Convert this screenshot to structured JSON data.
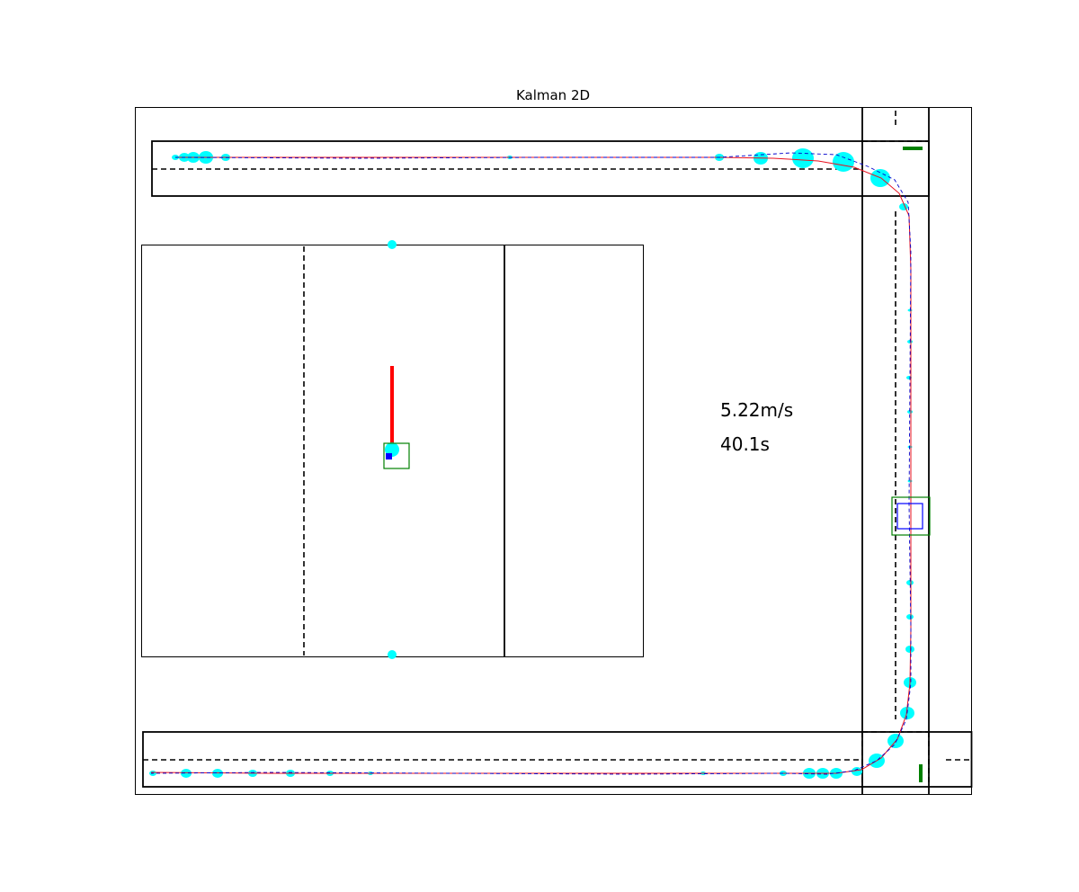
{
  "chart_data": {
    "type": "scatter",
    "title": "Kalman 2D",
    "xlabel": "",
    "ylabel": "",
    "grid": false,
    "annotations": {
      "speed": "5.22m/s",
      "time": "40.1s"
    },
    "colors": {
      "path_line": "#e8101e",
      "estimate_line": "#0000cc",
      "uncertainty_markers": "#00ffff",
      "box_outer": "#008000",
      "box_inner": "#0000ff",
      "heading_line": "#ff0000",
      "axes": "#000000"
    },
    "series": [
      {
        "role": "measured-path",
        "style": "solid",
        "points": [
          [
            195,
            175
          ],
          [
            400,
            175
          ],
          [
            600,
            175
          ],
          [
            800,
            175
          ],
          [
            860,
            176
          ],
          [
            910,
            179
          ],
          [
            950,
            186
          ],
          [
            980,
            198
          ],
          [
            1000,
            215
          ],
          [
            1011,
            240
          ],
          [
            1013,
            300
          ],
          [
            1013,
            420
          ],
          [
            1013,
            560
          ],
          [
            1013,
            700
          ],
          [
            1012,
            760
          ],
          [
            1008,
            795
          ],
          [
            998,
            822
          ],
          [
            980,
            843
          ],
          [
            958,
            856
          ],
          [
            930,
            860
          ],
          [
            870,
            860
          ],
          [
            700,
            860
          ],
          [
            500,
            860
          ],
          [
            300,
            860
          ],
          [
            168,
            859
          ]
        ]
      },
      {
        "role": "estimated-path",
        "style": "dashed",
        "points": [
          [
            195,
            175
          ],
          [
            400,
            176
          ],
          [
            600,
            175
          ],
          [
            800,
            175
          ],
          [
            880,
            170
          ],
          [
            930,
            172
          ],
          [
            965,
            185
          ],
          [
            995,
            200
          ],
          [
            1010,
            225
          ],
          [
            1013,
            280
          ],
          [
            1012,
            420
          ],
          [
            1011,
            560
          ],
          [
            1013,
            700
          ],
          [
            1013,
            760
          ],
          [
            1008,
            800
          ],
          [
            995,
            828
          ],
          [
            975,
            846
          ],
          [
            950,
            857
          ],
          [
            920,
            861
          ],
          [
            870,
            860
          ],
          [
            700,
            861
          ],
          [
            500,
            860
          ],
          [
            300,
            859
          ],
          [
            168,
            860
          ]
        ]
      },
      {
        "role": "uncertainty",
        "points": [
          [
            195,
            175,
            3
          ],
          [
            205,
            175,
            5
          ],
          [
            215,
            175,
            6
          ],
          [
            229,
            175,
            7
          ],
          [
            251,
            175,
            4
          ],
          [
            567,
            175,
            2
          ],
          [
            800,
            175,
            4
          ],
          [
            846,
            176,
            7
          ],
          [
            893,
            176,
            11
          ],
          [
            938,
            180,
            11
          ],
          [
            979,
            198,
            10
          ],
          [
            1005,
            230,
            4
          ],
          [
            1012,
            345,
            1.5
          ],
          [
            1012,
            380,
            2
          ],
          [
            1011,
            420,
            2
          ],
          [
            1012,
            458,
            2
          ],
          [
            1012,
            497,
            1.5
          ],
          [
            1012,
            535,
            1.5
          ],
          [
            1012,
            648,
            3
          ],
          [
            1012,
            686,
            3
          ],
          [
            1012,
            722,
            4
          ],
          [
            1012,
            759,
            6
          ],
          [
            1009,
            793,
            7
          ],
          [
            996,
            824,
            8
          ],
          [
            975,
            846,
            8
          ],
          [
            953,
            858,
            5
          ],
          [
            930,
            860,
            6
          ],
          [
            915,
            860,
            6
          ],
          [
            900,
            860,
            6
          ],
          [
            871,
            860,
            3
          ],
          [
            782,
            860,
            2
          ],
          [
            412,
            860,
            2
          ],
          [
            367,
            860,
            3
          ],
          [
            323,
            860,
            4
          ],
          [
            281,
            860,
            4
          ],
          [
            242,
            860,
            5
          ],
          [
            207,
            860,
            5
          ],
          [
            170,
            860,
            3
          ]
        ]
      }
    ],
    "inset_series": [
      {
        "role": "heading",
        "points": [
          [
            436,
            407
          ],
          [
            436,
            502
          ]
        ]
      },
      {
        "role": "uncertainty",
        "points": [
          [
            436,
            272,
            5
          ],
          [
            436,
            500,
            8
          ],
          [
            436,
            728,
            5
          ]
        ]
      }
    ]
  }
}
